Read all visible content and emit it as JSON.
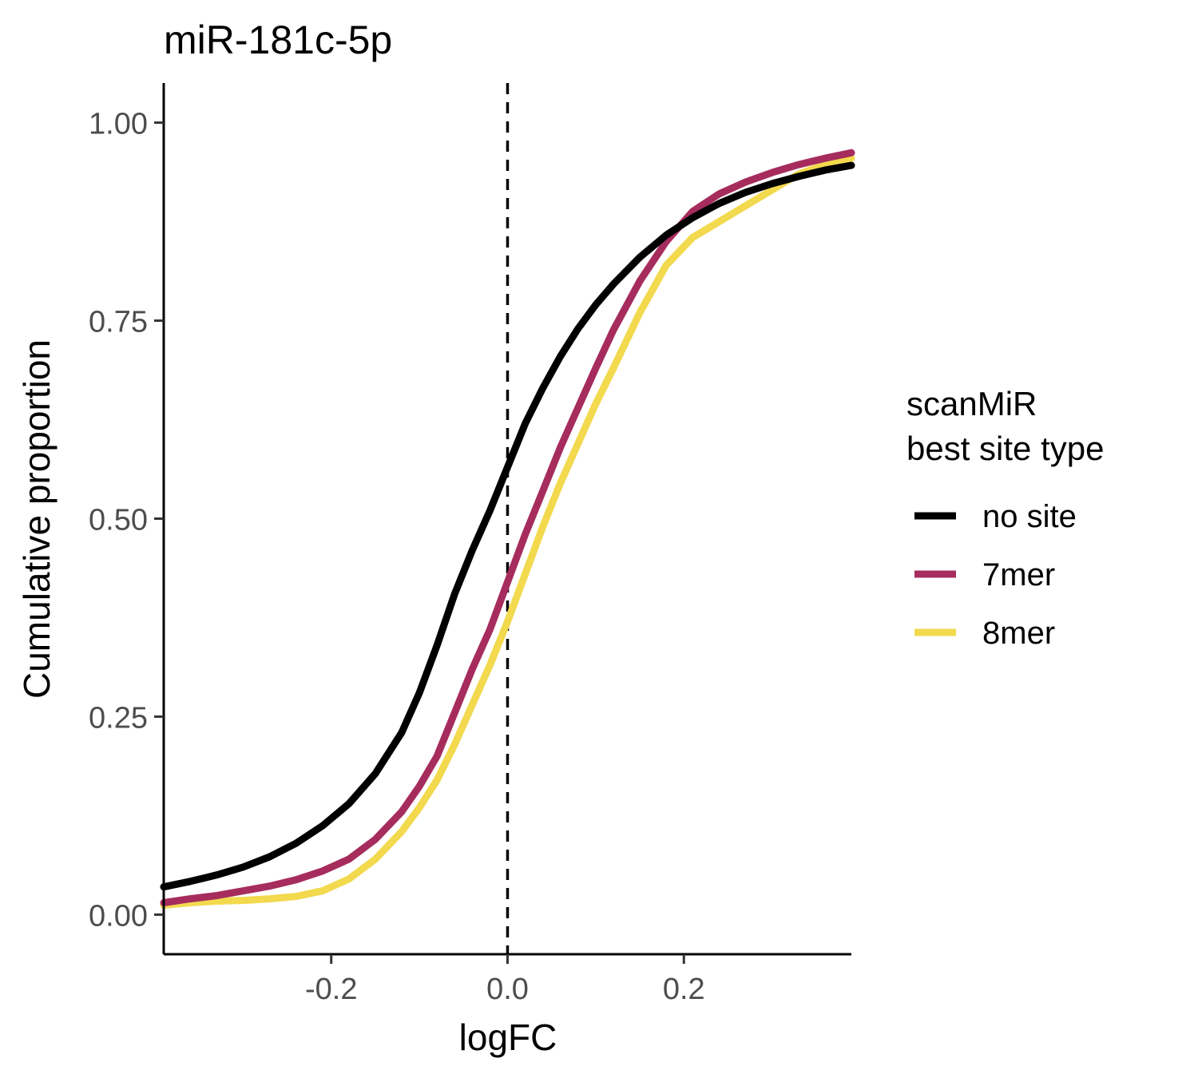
{
  "chart_data": {
    "type": "line",
    "title": "miR-181c-5p",
    "xlabel": "logFC",
    "ylabel": "Cumulative proportion",
    "xlim": [
      -0.39,
      0.39
    ],
    "ylim": [
      -0.05,
      1.05
    ],
    "x_ticks": [
      -0.2,
      0.0,
      0.2
    ],
    "x_tick_labels": [
      "-0.2",
      "0.0",
      "0.2"
    ],
    "y_ticks": [
      0.0,
      0.25,
      0.5,
      0.75,
      1.0
    ],
    "y_tick_labels": [
      "0.00",
      "0.25",
      "0.50",
      "0.75",
      "1.00"
    ],
    "reference_line": {
      "x": 0.0,
      "style": "dashed"
    },
    "grid": false,
    "legend": {
      "title_lines": [
        "scanMiR",
        "best site type"
      ],
      "placement": "right"
    },
    "series": [
      {
        "name": "no site",
        "color": "#000000",
        "x": [
          -0.39,
          -0.36,
          -0.33,
          -0.3,
          -0.27,
          -0.24,
          -0.21,
          -0.18,
          -0.15,
          -0.12,
          -0.1,
          -0.08,
          -0.06,
          -0.04,
          -0.02,
          0.0,
          0.02,
          0.04,
          0.06,
          0.08,
          0.1,
          0.12,
          0.15,
          0.18,
          0.21,
          0.24,
          0.27,
          0.3,
          0.33,
          0.36,
          0.39
        ],
        "y": [
          0.035,
          0.042,
          0.05,
          0.06,
          0.073,
          0.09,
          0.112,
          0.14,
          0.178,
          0.23,
          0.28,
          0.34,
          0.405,
          0.46,
          0.51,
          0.565,
          0.62,
          0.665,
          0.705,
          0.74,
          0.77,
          0.796,
          0.83,
          0.858,
          0.88,
          0.898,
          0.912,
          0.923,
          0.932,
          0.94,
          0.946
        ]
      },
      {
        "name": "7mer",
        "color": "#a62c5e",
        "x": [
          -0.39,
          -0.36,
          -0.33,
          -0.3,
          -0.27,
          -0.24,
          -0.21,
          -0.18,
          -0.15,
          -0.12,
          -0.1,
          -0.08,
          -0.06,
          -0.04,
          -0.02,
          0.0,
          0.02,
          0.04,
          0.06,
          0.08,
          0.1,
          0.12,
          0.15,
          0.18,
          0.21,
          0.24,
          0.27,
          0.3,
          0.33,
          0.36,
          0.39
        ],
        "y": [
          0.015,
          0.02,
          0.024,
          0.03,
          0.036,
          0.044,
          0.055,
          0.07,
          0.095,
          0.13,
          0.162,
          0.2,
          0.255,
          0.31,
          0.36,
          0.42,
          0.48,
          0.535,
          0.59,
          0.64,
          0.69,
          0.738,
          0.8,
          0.85,
          0.888,
          0.91,
          0.925,
          0.937,
          0.947,
          0.955,
          0.962
        ]
      },
      {
        "name": "8mer",
        "color": "#f2d94e",
        "x": [
          -0.39,
          -0.36,
          -0.33,
          -0.3,
          -0.27,
          -0.24,
          -0.21,
          -0.18,
          -0.15,
          -0.12,
          -0.1,
          -0.08,
          -0.06,
          -0.04,
          -0.02,
          0.0,
          0.02,
          0.04,
          0.06,
          0.08,
          0.1,
          0.12,
          0.15,
          0.18,
          0.21,
          0.24,
          0.27,
          0.3,
          0.33,
          0.36,
          0.39
        ],
        "y": [
          0.012,
          0.015,
          0.017,
          0.018,
          0.02,
          0.023,
          0.03,
          0.045,
          0.07,
          0.105,
          0.135,
          0.17,
          0.215,
          0.265,
          0.315,
          0.37,
          0.43,
          0.49,
          0.545,
          0.595,
          0.645,
          0.69,
          0.76,
          0.82,
          0.855,
          0.875,
          0.895,
          0.915,
          0.935,
          0.947,
          0.955
        ]
      }
    ]
  }
}
